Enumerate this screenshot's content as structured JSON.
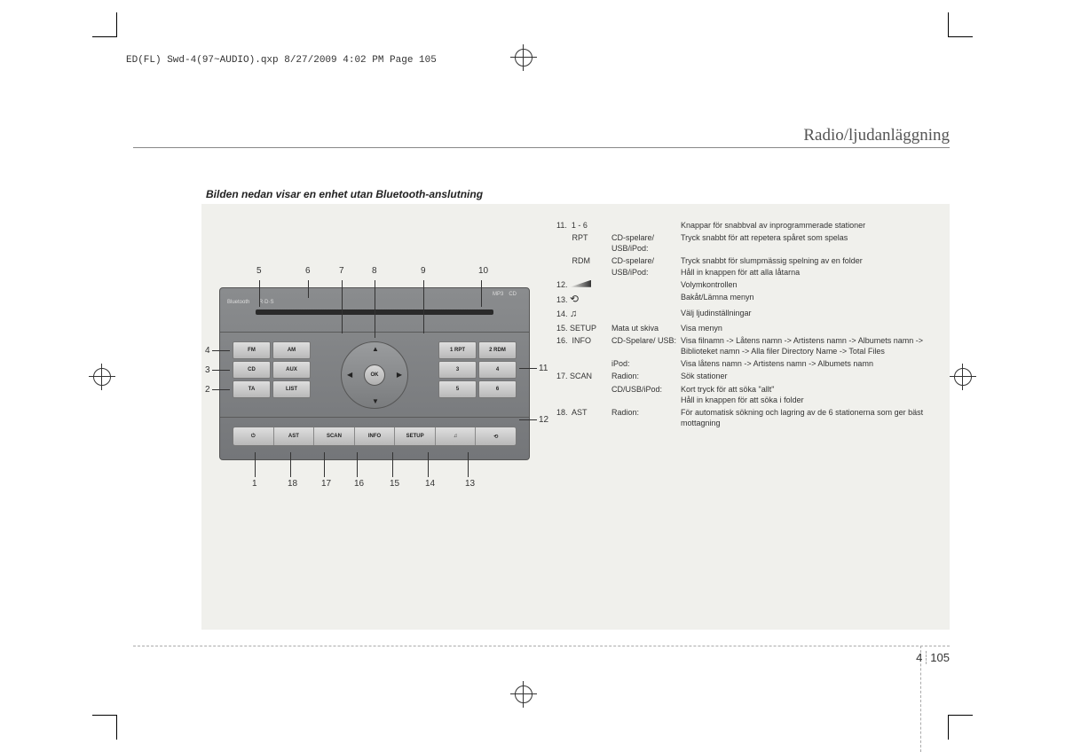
{
  "slug": "ED(FL) Swd-4(97~AUDIO).qxp  8/27/2009  4:02 PM  Page 105",
  "section_title": "Radio/ljudanläggning",
  "subtitle": "Bilden nedan visar en enhet utan Bluetooth-anslutning",
  "page_chapter": "4",
  "page_number": "105",
  "callouts": {
    "top": [
      "5",
      "6",
      "7",
      "8",
      "9",
      "10"
    ],
    "left": [
      "4",
      "3",
      "2"
    ],
    "right": [
      "11",
      "12"
    ],
    "bottom": [
      "1",
      "18",
      "17",
      "16",
      "15",
      "14",
      "13"
    ]
  },
  "radio": {
    "badges": [
      "Bluetooth",
      "R·D·S",
      "MP3",
      "CD"
    ],
    "left_buttons": [
      [
        "FM",
        "AM"
      ],
      [
        "CD",
        "AUX"
      ],
      [
        "TA",
        "LIST"
      ]
    ],
    "right_buttons": [
      [
        "1 RPT",
        "2 RDM"
      ],
      [
        "3",
        "4"
      ],
      [
        "5",
        "6"
      ]
    ],
    "ok": "OK",
    "bottom_buttons": [
      "⏻",
      "AST",
      "SCAN",
      "INFO",
      "SETUP",
      "♫",
      "⟲"
    ]
  },
  "rows": [
    {
      "c1": "11.  1 - 6",
      "c2": "",
      "c3": "Knappar för snabbval av inprogrammerade stationer"
    },
    {
      "c1": "       RPT",
      "c2": "CD-spelare/ USB/iPod:",
      "c3": "Tryck snabbt för att repetera spåret som spelas"
    },
    {
      "c1": "       RDM",
      "c2": "CD-spelare/ USB/iPod:",
      "c3": "Tryck snabbt för slumpmässig spelning av en folder\nHåll in knappen för att alla låtarna"
    },
    {
      "c1": "12.",
      "sym": "vol",
      "c2": "",
      "c3": "Volymkontrollen"
    },
    {
      "c1": "13.",
      "sym": "back",
      "c2": "",
      "c3": "Bakåt/Lämna menyn"
    },
    {
      "c1": "14.",
      "sym": "music",
      "c2": "",
      "c3": "Välj ljudinställningar"
    },
    {
      "c1": "15. SETUP",
      "c2": "Mata ut skiva",
      "c3": "Visa menyn"
    },
    {
      "c1": "16.  INFO",
      "c2": "CD-Spelare/ USB:",
      "c3": "Visa filnamn -> Låtens namn -> Artistens namn -> Albumets namn -> Biblioteket namn -> Alla filer Directory Name -> Total Files"
    },
    {
      "c1": "",
      "c2": "iPod:",
      "c3": "Visa låtens namn -> Artistens namn -> Albumets namn"
    },
    {
      "c1": "17. SCAN",
      "c2": "Radion:",
      "c3": "Sök stationer"
    },
    {
      "c1": "",
      "c2": "CD/USB/iPod:",
      "c3": "Kort tryck för att söka \"allt\"\nHåll in knappen för att söka i folder"
    },
    {
      "c1": "18.  AST",
      "c2": "Radion:",
      "c3": "För automatisk sökning och lagring av de 6 stationerna som ger bäst mottagning"
    }
  ],
  "colors": {
    "page_bg": "#ffffff",
    "box_bg": "#f0f0ec",
    "radio_body": "#808284",
    "btn_bg": "#c8c8c8",
    "text": "#333333"
  }
}
